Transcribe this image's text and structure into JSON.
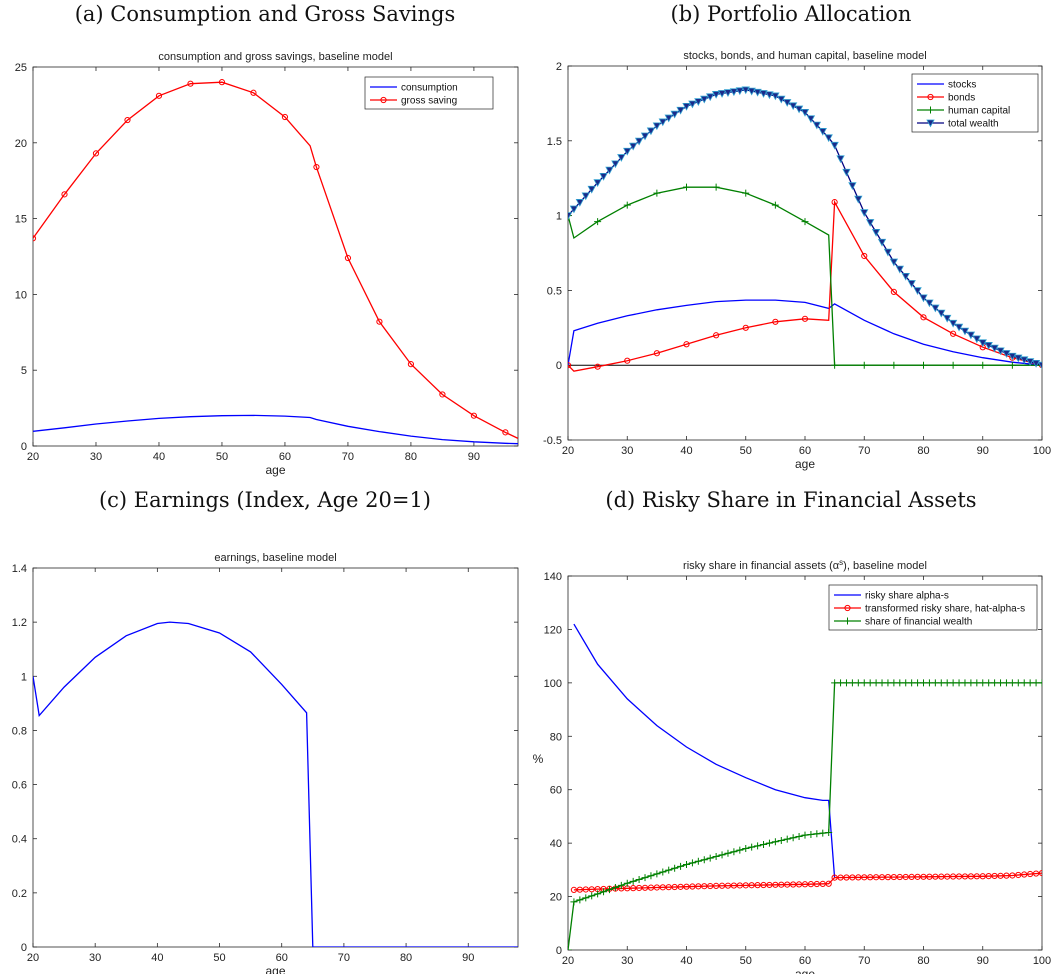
{
  "figure": {
    "captions": [
      "(a) Consumption and Gross Savings",
      "(b) Portfolio Allocation",
      "(c) Earnings (Index, Age 20=1)",
      "(d) Risky Share in Financial Assets"
    ]
  },
  "chart_data": [
    {
      "type": "line",
      "title": "consumption and gross savings, baseline model",
      "xlabel": "age",
      "ylabel": "",
      "xlim": [
        20,
        97
      ],
      "ylim": [
        0,
        25
      ],
      "xticks": [
        20,
        30,
        40,
        50,
        60,
        70,
        80,
        90
      ],
      "yticks": [
        0,
        5,
        10,
        15,
        20,
        25
      ],
      "legend_position": "top-right",
      "series": [
        {
          "name": "consumption",
          "color": "#0000ff",
          "marker": "none",
          "x": [
            20,
            25,
            30,
            35,
            40,
            45,
            50,
            55,
            60,
            64,
            65,
            70,
            75,
            80,
            85,
            90,
            95,
            97
          ],
          "y": [
            0.97,
            1.2,
            1.45,
            1.65,
            1.82,
            1.93,
            2.0,
            2.02,
            1.97,
            1.88,
            1.75,
            1.3,
            0.95,
            0.65,
            0.42,
            0.28,
            0.18,
            0.15
          ]
        },
        {
          "name": "gross saving",
          "color": "#ff0000",
          "marker": "circle",
          "marker_every": 5,
          "x": [
            20,
            25,
            30,
            35,
            40,
            45,
            50,
            55,
            60,
            64,
            65,
            70,
            75,
            80,
            85,
            90,
            95,
            97
          ],
          "y": [
            13.7,
            16.6,
            19.3,
            21.5,
            23.1,
            23.9,
            24.0,
            23.3,
            21.7,
            19.8,
            18.4,
            12.4,
            8.2,
            5.4,
            3.4,
            2.0,
            0.9,
            0.5
          ]
        }
      ]
    },
    {
      "type": "line",
      "title": "stocks, bonds, and human capital, baseline model",
      "xlabel": "age",
      "ylabel": "",
      "xlim": [
        20,
        100
      ],
      "ylim": [
        -0.5,
        2
      ],
      "xticks": [
        20,
        30,
        40,
        50,
        60,
        70,
        80,
        90,
        100
      ],
      "yticks": [
        -0.5,
        0,
        0.5,
        1,
        1.5,
        2
      ],
      "legend_position": "top-right",
      "zero_line": true,
      "series": [
        {
          "name": "stocks",
          "color": "#0000ff",
          "marker": "none",
          "x": [
            20,
            21,
            25,
            30,
            35,
            40,
            45,
            50,
            55,
            60,
            64,
            65,
            70,
            75,
            80,
            85,
            90,
            95,
            100
          ],
          "y": [
            0,
            0.23,
            0.28,
            0.33,
            0.37,
            0.4,
            0.425,
            0.435,
            0.435,
            0.42,
            0.38,
            0.41,
            0.3,
            0.21,
            0.14,
            0.09,
            0.05,
            0.02,
            0
          ]
        },
        {
          "name": "bonds",
          "color": "#ff0000",
          "marker": "circle",
          "marker_every": 5,
          "x": [
            20,
            21,
            25,
            30,
            35,
            40,
            45,
            50,
            55,
            60,
            64,
            65,
            70,
            75,
            80,
            85,
            90,
            95,
            100
          ],
          "y": [
            0,
            -0.04,
            -0.01,
            0.03,
            0.08,
            0.14,
            0.2,
            0.25,
            0.29,
            0.31,
            0.3,
            1.09,
            0.73,
            0.49,
            0.32,
            0.21,
            0.12,
            0.05,
            0
          ]
        },
        {
          "name": "human capital",
          "color": "#008000",
          "marker": "plus",
          "marker_every": 5,
          "x": [
            20,
            21,
            25,
            30,
            35,
            40,
            45,
            50,
            55,
            60,
            64,
            65,
            70,
            75,
            80,
            85,
            90,
            95,
            100
          ],
          "y": [
            1.0,
            0.85,
            0.96,
            1.07,
            1.15,
            1.19,
            1.19,
            1.15,
            1.07,
            0.96,
            0.87,
            0,
            0,
            0,
            0,
            0,
            0,
            0,
            0
          ]
        },
        {
          "name": "total wealth",
          "color": "#000080",
          "marker": "triangle-down",
          "marker_every": 1,
          "x": [
            20,
            25,
            30,
            35,
            40,
            45,
            50,
            55,
            60,
            64,
            65,
            70,
            75,
            80,
            85,
            90,
            95,
            100
          ],
          "y": [
            1.0,
            1.22,
            1.43,
            1.6,
            1.73,
            1.81,
            1.84,
            1.8,
            1.69,
            1.52,
            1.47,
            1.02,
            0.69,
            0.45,
            0.28,
            0.15,
            0.06,
            0
          ]
        }
      ]
    },
    {
      "type": "line",
      "title": "earnings, baseline model",
      "xlabel": "age",
      "ylabel": "",
      "xlim": [
        20,
        98
      ],
      "ylim": [
        0,
        1.4
      ],
      "xticks": [
        20,
        30,
        40,
        50,
        60,
        70,
        80,
        90
      ],
      "yticks": [
        0,
        0.2,
        0.4,
        0.6,
        0.8,
        1,
        1.2,
        1.4
      ],
      "series": [
        {
          "name": "",
          "color": "#0000ff",
          "marker": "none",
          "x": [
            20,
            21,
            25,
            30,
            35,
            40,
            42,
            45,
            50,
            55,
            60,
            64,
            65,
            70,
            80,
            90,
            98
          ],
          "y": [
            1.0,
            0.855,
            0.96,
            1.07,
            1.15,
            1.195,
            1.2,
            1.195,
            1.16,
            1.09,
            0.97,
            0.865,
            0,
            0,
            0,
            0,
            0
          ]
        }
      ]
    },
    {
      "type": "line",
      "title": "risky share in financial assets (α^s), baseline model",
      "xlabel": "age",
      "ylabel": "%",
      "xlim": [
        20,
        100
      ],
      "ylim": [
        0,
        140
      ],
      "xticks": [
        20,
        30,
        40,
        50,
        60,
        70,
        80,
        90,
        100
      ],
      "yticks": [
        0,
        20,
        40,
        60,
        80,
        100,
        120,
        140
      ],
      "legend_position": "top-right",
      "series": [
        {
          "name": "risky share alpha-s",
          "color": "#0000ff",
          "marker": "none",
          "x": [
            21,
            25,
            30,
            35,
            40,
            45,
            50,
            55,
            60,
            63,
            64,
            65
          ],
          "y": [
            122,
            107,
            94,
            84,
            76,
            69.5,
            64.5,
            60,
            57,
            56,
            56,
            27
          ]
        },
        {
          "name": "transformed risky share, hat-alpha-s",
          "color": "#ff0000",
          "marker": "circle",
          "marker_every": 1,
          "x": [
            21,
            25,
            30,
            35,
            40,
            45,
            50,
            55,
            60,
            64,
            65,
            70,
            75,
            80,
            85,
            90,
            95,
            100
          ],
          "y": [
            22.5,
            22.8,
            23.1,
            23.4,
            23.7,
            24.0,
            24.2,
            24.4,
            24.6,
            24.8,
            27.1,
            27.2,
            27.3,
            27.4,
            27.5,
            27.6,
            27.9,
            28.8
          ]
        },
        {
          "name": "share of financial wealth",
          "color": "#008000",
          "marker": "plus",
          "marker_every": 1,
          "x": [
            20,
            21,
            25,
            30,
            35,
            40,
            45,
            50,
            55,
            60,
            64,
            65,
            70,
            80,
            90,
            100
          ],
          "y": [
            0,
            18,
            21,
            25,
            28.5,
            32,
            35,
            38,
            40.5,
            43,
            44,
            100,
            100,
            100,
            100,
            100
          ]
        }
      ]
    }
  ]
}
